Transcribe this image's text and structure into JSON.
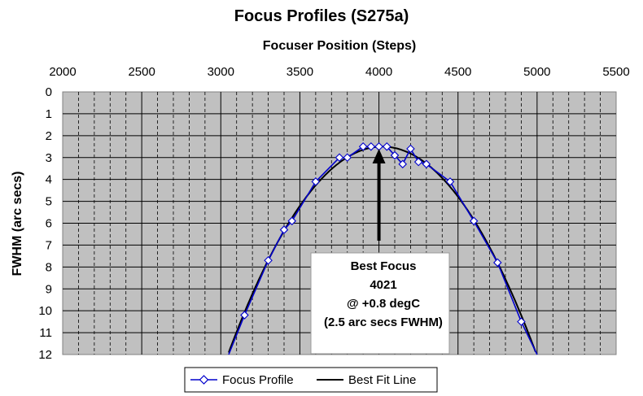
{
  "chart_data": {
    "type": "line",
    "title": "Focus Profiles (S275a)",
    "xlabel": "Focuser Position (Steps)",
    "ylabel": "FWHM (arc secs)",
    "x_axis_position": "top",
    "y_axis_inverted": true,
    "xlim": [
      2000,
      5500
    ],
    "ylim": [
      0,
      12
    ],
    "x_ticks": [
      "2000",
      "2500",
      "3000",
      "3500",
      "4000",
      "4500",
      "5000",
      "5500"
    ],
    "y_ticks": [
      "0",
      "1",
      "2",
      "3",
      "4",
      "5",
      "6",
      "7",
      "8",
      "9",
      "10",
      "11",
      "12"
    ],
    "grid": true,
    "plot_background": "#c0c0c0",
    "legend_position": "bottom",
    "series": [
      {
        "name": "Focus Profile",
        "color": "#0000cc",
        "marker": "diamond",
        "points": [
          [
            3050,
            12.0
          ],
          [
            3150,
            10.2
          ],
          [
            3300,
            7.7
          ],
          [
            3400,
            6.3
          ],
          [
            3450,
            5.9
          ],
          [
            3600,
            4.1
          ],
          [
            3750,
            3.0
          ],
          [
            3800,
            3.0
          ],
          [
            3900,
            2.5
          ],
          [
            3950,
            2.5
          ],
          [
            4000,
            2.5
          ],
          [
            4050,
            2.5
          ],
          [
            4100,
            2.9
          ],
          [
            4150,
            3.3
          ],
          [
            4200,
            2.6
          ],
          [
            4250,
            3.2
          ],
          [
            4300,
            3.3
          ],
          [
            4450,
            4.1
          ],
          [
            4600,
            5.9
          ],
          [
            4750,
            7.8
          ],
          [
            4900,
            10.5
          ],
          [
            5000,
            12.0
          ]
        ]
      },
      {
        "name": "Best Fit Line",
        "color": "#000000",
        "marker": "none",
        "fit": {
          "vertex_x": 4021,
          "vertex_y": 2.5,
          "a": 9.98e-06
        }
      }
    ],
    "annotation": {
      "lines": [
        "Best Focus",
        "4021",
        "@ +0.8 degC",
        "(2.5 arc secs FWHM)"
      ],
      "arrow_x": 4000,
      "arrow_from_y": 6.8,
      "arrow_to_y": 2.6
    }
  }
}
